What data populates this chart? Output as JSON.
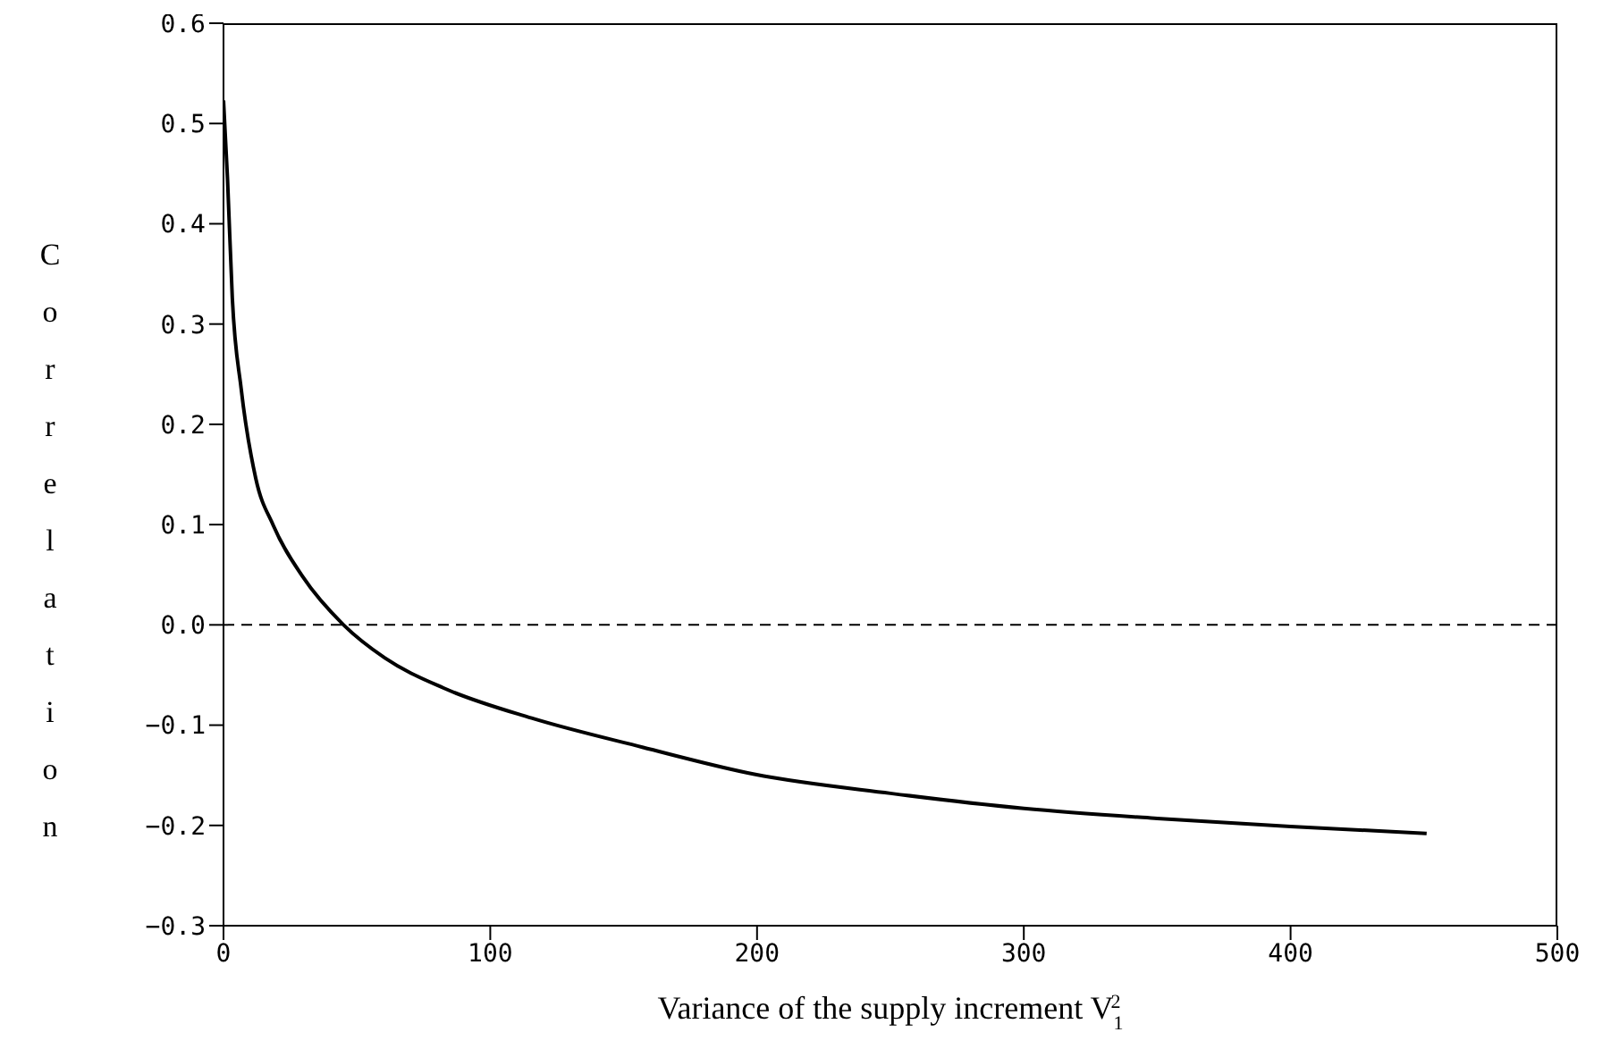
{
  "chart_data": {
    "type": "line",
    "xlabel": "Variance of the supply increment V$_{1}$$^{2}$",
    "ylabel": "Correlation",
    "x": [
      0,
      1.5,
      3.3,
      6.6,
      12.1,
      18.7,
      29.7,
      45,
      60.5,
      82.5,
      115.5,
      157,
      199,
      250,
      300,
      350,
      400,
      451
    ],
    "series": [
      {
        "color": "#000000",
        "values": [
          0.523,
          0.445,
          0.326,
          0.236,
          0.146,
          0.099,
          0.048,
          0,
          -0.033,
          -0.063,
          -0.093,
          -0.122,
          -0.149,
          -0.168,
          -0.183,
          -0.193,
          -0.201,
          -0.208
        ]
      }
    ],
    "xlim": [
      0,
      500
    ],
    "xticks": [
      0,
      100,
      200,
      300,
      400,
      500
    ],
    "ylim": [
      -0.3,
      0.6
    ],
    "yticks": [
      -0.3,
      -0.2,
      -0.1,
      {
        "value": 0,
        "label": "0.0"
      },
      0.1,
      0.2,
      0.3,
      0.4,
      0.5,
      0.6
    ],
    "ref_lines": [
      {
        "axis": "y",
        "value": 0,
        "line_style": "dashed",
        "color": "#000000"
      }
    ],
    "grid": false,
    "legend": false,
    "marker": "none",
    "line_style": "solid"
  }
}
